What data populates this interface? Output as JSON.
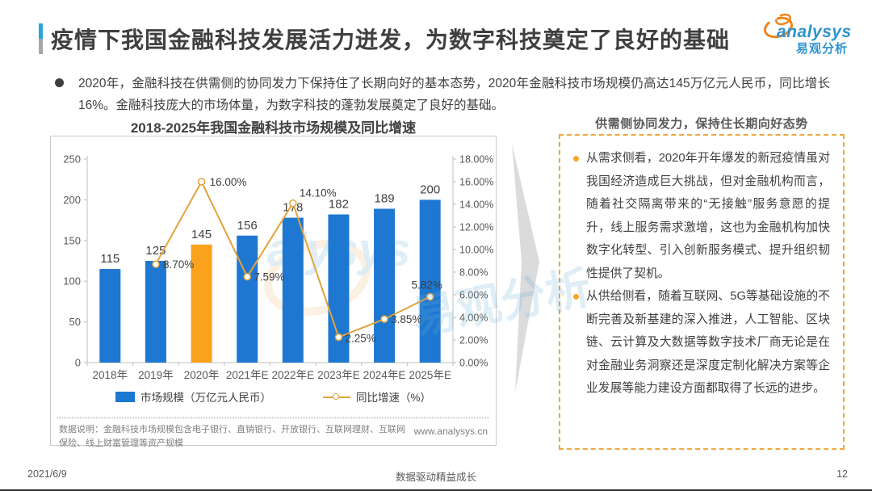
{
  "page": {
    "title": "疫情下我国金融科技发展活力迸发，为数字科技奠定了良好的基础",
    "footer": {
      "date": "2021/6/9",
      "slogan": "数据驱动精益成长",
      "page_number": "12"
    }
  },
  "logo": {
    "brand": "analysys",
    "brand_cn": "易观分析"
  },
  "summary": {
    "bullet": "2020年，金融科技在供需侧的协同发力下保持住了长期向好的基本态势，2020年金融科技市场规模仍高达145万亿元人民币，同比增长16%。金融科技庞大的市场体量，为数字科技的蓬勃发展奠定了良好的基础。"
  },
  "chart_data": {
    "type": "bar",
    "combo": "bar+line",
    "title": "2018-2025年我国金融科技市场规模及同比增速",
    "categories": [
      "2018年",
      "2019年",
      "2020年",
      "2021年E",
      "2022年E",
      "2023年E",
      "2024年E",
      "2025年E"
    ],
    "series": [
      {
        "name": "市场规模（万亿元人民币）",
        "type": "bar",
        "values": [
          115,
          125,
          145,
          156,
          178,
          182,
          189,
          200
        ],
        "color": "#1E78D2",
        "highlight_index": 2,
        "highlight_color": "#FAA21B"
      },
      {
        "name": "同比增速（%）",
        "type": "line",
        "values": [
          null,
          8.7,
          16.0,
          7.59,
          14.1,
          2.25,
          3.85,
          5.82
        ],
        "labels": [
          null,
          "8.70%",
          "16.00%",
          "7.59%",
          "14.10%",
          "2.25%",
          "3.85%",
          "5.82%"
        ],
        "color": "#E2A33C",
        "marker": "open-circle"
      }
    ],
    "left_axis": {
      "min": 0,
      "max": 250,
      "step": 50,
      "ticks": [
        "0",
        "50",
        "100",
        "150",
        "200",
        "250"
      ]
    },
    "right_axis": {
      "min": 0,
      "max": 18,
      "step": 2,
      "ticks": [
        "0.00%",
        "2.00%",
        "4.00%",
        "6.00%",
        "8.00%",
        "10.00%",
        "12.00%",
        "14.00%",
        "16.00%",
        "18.00%"
      ]
    },
    "legend_position": "bottom",
    "grid": false,
    "footnote": "数据说明：金融科技市场规模包含电子银行、直销银行、开放银行、互联网理财、互联网保险、线上财富管理等资产规模",
    "source_url": "www.analysys.cn",
    "watermark": "易观分析"
  },
  "insight_panel": {
    "title": "供需侧协同发力，保持住长期向好态势",
    "bullets": [
      "从需求侧看，2020年开年爆发的新冠疫情虽对我国经济造成巨大挑战，但对金融机构而言，随着社交隔离带来的“无接触”服务意愿的提升，线上服务需求激增，这也为金融机构加快数字化转型、引入创新服务模式、提升组织韧性提供了契机。",
      "从供给侧看，随着互联网、5G等基础设施的不断完善及新基建的深入推进，人工智能、区块链、云计算及大数据等数字技术厂商无论是在对金融业务洞察还是深度定制化解决方案等企业发展等能力建设方面都取得了长远的进步。"
    ]
  },
  "colors": {
    "bar_blue": "#1E78D2",
    "bar_highlight_orange": "#FAA21B",
    "line_orange": "#E2A33C",
    "panel_border_orange": "#EBAA3C",
    "accent_blue": "#2BA3DC",
    "accent_gray": "#A6A6A6",
    "brand_blue": "#2E93CF",
    "brand_orange": "#F08519",
    "arrow_gray": "#D9DBDD"
  }
}
